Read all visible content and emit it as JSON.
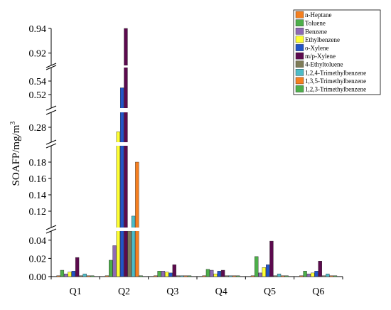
{
  "chart_data": {
    "type": "bar",
    "ylabel": "SOAFP/mg/m³",
    "ylabel_main": "SOAFP/mg/m",
    "ylabel_sup": "3",
    "categories": [
      "Q1",
      "Q2",
      "Q3",
      "Q4",
      "Q5",
      "Q6"
    ],
    "y_axis_broken": true,
    "y_segments": [
      {
        "range": [
          0,
          0.05
        ],
        "ticks": [
          "0.00",
          "0.02",
          "0.04"
        ],
        "tick_values": [
          0,
          0.02,
          0.04
        ]
      },
      {
        "range": [
          0.1,
          0.2
        ],
        "ticks": [
          "0.12",
          "0.14",
          "0.16",
          "0.18"
        ],
        "tick_values": [
          0.12,
          0.14,
          0.16,
          0.18
        ]
      },
      {
        "range": [
          0.27,
          0.29
        ],
        "ticks": [
          "0.28"
        ],
        "tick_values": [
          0.28
        ]
      },
      {
        "range": [
          0.5,
          0.56
        ],
        "ticks": [
          "0.52",
          "0.54"
        ],
        "tick_values": [
          0.52,
          0.54
        ]
      },
      {
        "range": [
          0.91,
          0.94
        ],
        "ticks": [
          "0.92",
          "0.94"
        ],
        "tick_values": [
          0.92,
          0.94
        ]
      }
    ],
    "legend_position": "top-right",
    "series": [
      {
        "name": "n-Heptane",
        "color": "#F47F20",
        "values": [
          0.001,
          0.001,
          0.001,
          0.001,
          0.001,
          0.001
        ]
      },
      {
        "name": "Toluene",
        "color": "#4DAF4A",
        "values": [
          0.007,
          0.018,
          0.006,
          0.008,
          0.022,
          0.006
        ]
      },
      {
        "name": "Benzene",
        "color": "#8E69B4",
        "values": [
          0.003,
          0.034,
          0.006,
          0.007,
          0.004,
          0.003
        ]
      },
      {
        "name": "Ethylbenzene",
        "color": "#FFFF33",
        "values": [
          0.005,
          0.277,
          0.005,
          0.003,
          0.01,
          0.004
        ]
      },
      {
        "name": "o-Xylene",
        "color": "#2254C8",
        "values": [
          0.006,
          0.53,
          0.004,
          0.006,
          0.013,
          0.006
        ]
      },
      {
        "name": "m/p-Xylene",
        "color": "#5C0A4E",
        "values": [
          0.021,
          0.98,
          0.013,
          0.007,
          0.039,
          0.017
        ]
      },
      {
        "name": "4-Ethyltoluene",
        "color": "#7E7B57",
        "values": [
          0.001,
          0.051,
          0.001,
          0.001,
          0.001,
          0.001
        ]
      },
      {
        "name": "1,2,4-Trimethylbenzene",
        "color": "#4CBCC8",
        "values": [
          0.003,
          0.114,
          0.001,
          0.001,
          0.003,
          0.003
        ]
      },
      {
        "name": "1,3,5-Trimethylbenzene",
        "color": "#F57F20",
        "values": [
          0.001,
          0.18,
          0.001,
          0.001,
          0.001,
          0.001
        ]
      },
      {
        "name": "1,2,3-Trimethylbenzene",
        "color": "#4DAF4A",
        "values": [
          0.001,
          0.001,
          0.001,
          0.001,
          0.001,
          0.001
        ]
      }
    ]
  }
}
